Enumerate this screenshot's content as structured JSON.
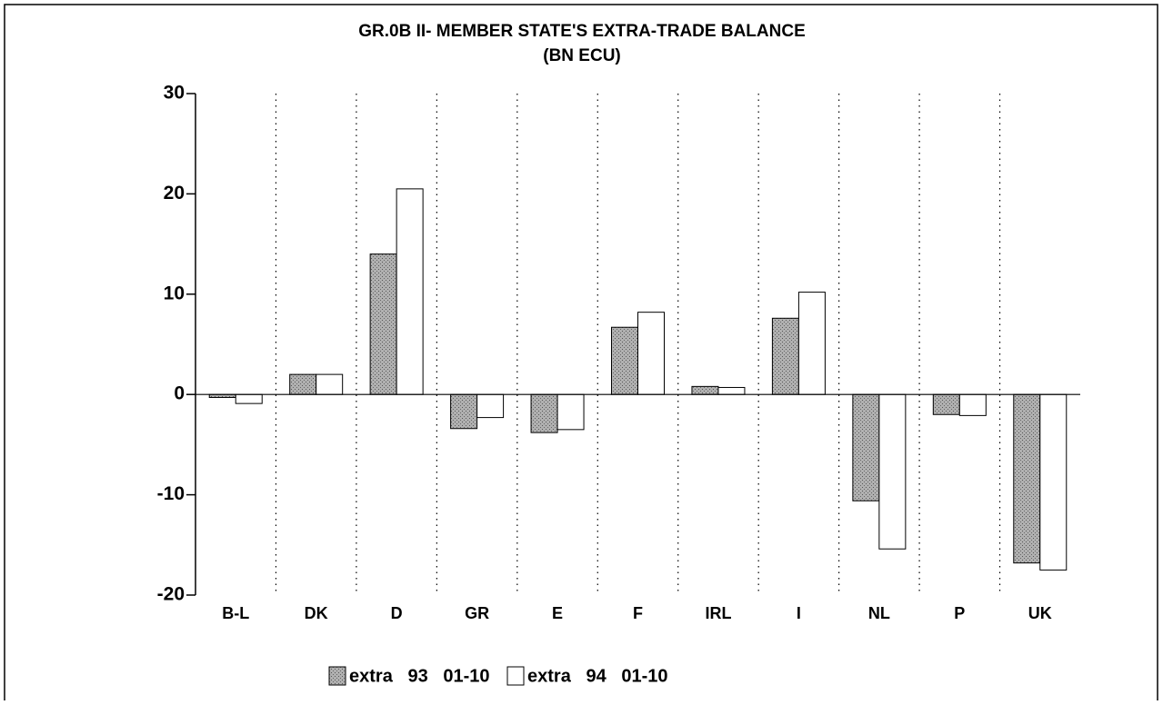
{
  "chart_data": {
    "type": "bar",
    "title": "GR.0B II- MEMBER STATE'S EXTRA-TRADE BALANCE",
    "subtitle": "(BN ECU)",
    "categories": [
      "B-L",
      "DK",
      "D",
      "GR",
      "E",
      "F",
      "IRL",
      "I",
      "NL",
      "P",
      "UK"
    ],
    "series": [
      {
        "name": "extra   93   01-10",
        "color": "#9a9a9a",
        "values": [
          -0.3,
          2.0,
          14.0,
          -3.4,
          -3.8,
          6.7,
          0.8,
          7.6,
          -10.6,
          -2.0,
          -16.8
        ]
      },
      {
        "name": "extra   94   01-10",
        "color": "#ffffff",
        "values": [
          -0.9,
          2.0,
          20.5,
          -2.3,
          -3.5,
          8.2,
          0.7,
          10.2,
          -15.4,
          -2.1,
          -17.5
        ]
      }
    ],
    "ylim": [
      -20,
      30
    ],
    "yticks": [
      -20,
      -10,
      0,
      10,
      20,
      30
    ],
    "legend": "bottom"
  }
}
